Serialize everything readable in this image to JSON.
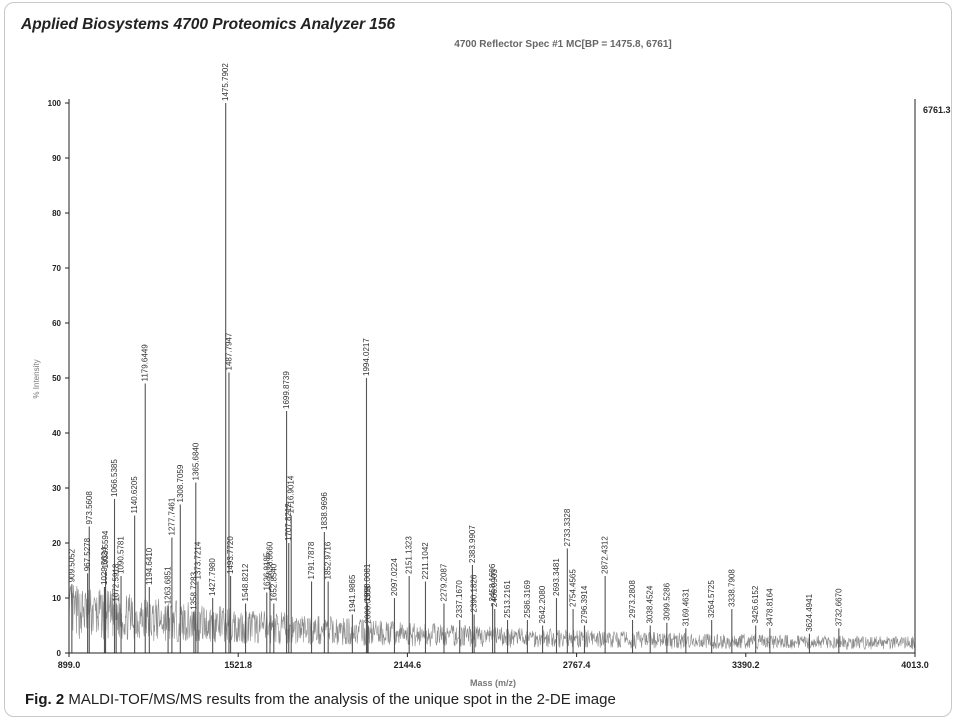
{
  "caption": {
    "label": "Fig. 2",
    "text": "MALDI-TOF/MS/MS results from the analysis of the unique spot in the 2-DE image"
  },
  "chart_data": {
    "type": "line",
    "title": "Applied Biosystems 4700 Proteomics Analyzer 156",
    "subtitle": "4700 Reflector Spec #1 MC[BP = 1475.8, 6761]",
    "xlabel": "Mass (m/z)",
    "ylabel": "% Intensity",
    "right_max_label": "6761.3",
    "xlim": [
      899.0,
      4013.0
    ],
    "ylim": [
      0,
      100
    ],
    "x_ticks": [
      "899.0",
      "1521.8",
      "2144.6",
      "2767.4",
      "3390.2",
      "4013.0"
    ],
    "y_ticks": [
      0,
      10,
      20,
      30,
      40,
      50,
      60,
      70,
      80,
      90,
      100
    ],
    "grid": false,
    "colors": {
      "spectrum": "#555555",
      "title": "#222222"
    },
    "peaks": [
      {
        "mz": 909.5052,
        "i": 12.5
      },
      {
        "mz": 967.5278,
        "i": 14.5
      },
      {
        "mz": 973.5608,
        "i": 23
      },
      {
        "mz": 1029.5624,
        "i": 12
      },
      {
        "mz": 1033.5594,
        "i": 15
      },
      {
        "mz": 1066.5385,
        "i": 28
      },
      {
        "mz": 1072.5918,
        "i": 9
      },
      {
        "mz": 1090.5781,
        "i": 14
      },
      {
        "mz": 1140.6205,
        "i": 25
      },
      {
        "mz": 1179.6449,
        "i": 49
      },
      {
        "mz": 1194.641,
        "i": 12
      },
      {
        "mz": 1263.6851,
        "i": 8.5
      },
      {
        "mz": 1277.7461,
        "i": 21
      },
      {
        "mz": 1308.7059,
        "i": 27
      },
      {
        "mz": 1358.7283,
        "i": 7.5
      },
      {
        "mz": 1365.684,
        "i": 31
      },
      {
        "mz": 1373.7214,
        "i": 13
      },
      {
        "mz": 1427.798,
        "i": 10
      },
      {
        "mz": 1475.7902,
        "i": 100
      },
      {
        "mz": 1487.7947,
        "i": 51
      },
      {
        "mz": 1493.772,
        "i": 14
      },
      {
        "mz": 1548.8212,
        "i": 9
      },
      {
        "mz": 1626.9185,
        "i": 11
      },
      {
        "mz": 1638.866,
        "i": 13
      },
      {
        "mz": 1652.854,
        "i": 9
      },
      {
        "mz": 1699.8739,
        "i": 44
      },
      {
        "mz": 1707.8212,
        "i": 20
      },
      {
        "mz": 1716.9014,
        "i": 25
      },
      {
        "mz": 1791.7878,
        "i": 13
      },
      {
        "mz": 1838.9696,
        "i": 22
      },
      {
        "mz": 1852.9716,
        "i": 13
      },
      {
        "mz": 1941.9865,
        "i": 7
      },
      {
        "mz": 1994.0217,
        "i": 50
      },
      {
        "mz": 1998.0081,
        "i": 9
      },
      {
        "mz": 2000.0303,
        "i": 5
      },
      {
        "mz": 2097.0224,
        "i": 10
      },
      {
        "mz": 2151.1323,
        "i": 14
      },
      {
        "mz": 2211.1042,
        "i": 13
      },
      {
        "mz": 2279.2087,
        "i": 9
      },
      {
        "mz": 2337.167,
        "i": 6
      },
      {
        "mz": 2383.9907,
        "i": 16
      },
      {
        "mz": 2390.1826,
        "i": 7
      },
      {
        "mz": 2458.1606,
        "i": 9
      },
      {
        "mz": 2466.0903,
        "i": 8
      },
      {
        "mz": 2513.2161,
        "i": 6
      },
      {
        "mz": 2586.3169,
        "i": 6
      },
      {
        "mz": 2642.208,
        "i": 5
      },
      {
        "mz": 2693.3481,
        "i": 10
      },
      {
        "mz": 2733.3328,
        "i": 19
      },
      {
        "mz": 2754.4565,
        "i": 8
      },
      {
        "mz": 2796.3914,
        "i": 5
      },
      {
        "mz": 2872.4312,
        "i": 14
      },
      {
        "mz": 2973.2808,
        "i": 6
      },
      {
        "mz": 3038.4524,
        "i": 5
      },
      {
        "mz": 3099.5286,
        "i": 5.5
      },
      {
        "mz": 3169.4631,
        "i": 4.5
      },
      {
        "mz": 3264.5725,
        "i": 6
      },
      {
        "mz": 3338.7908,
        "i": 8
      },
      {
        "mz": 3426.6152,
        "i": 5
      },
      {
        "mz": 3478.8164,
        "i": 4.5
      },
      {
        "mz": 3624.4941,
        "i": 3.5
      },
      {
        "mz": 3732.667,
        "i": 4.5
      }
    ]
  }
}
